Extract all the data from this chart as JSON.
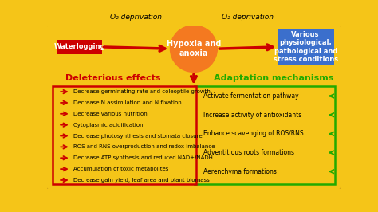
{
  "bg_color": "#f5c518",
  "waterlogging_label": "Waterlogging",
  "waterlogging_bg": "#cc0000",
  "hypoxia_label": "Hypoxia and\nanoxia",
  "hypoxia_color": "#f47920",
  "various_label": "Various\nphysiological,\npathological and\nstress conditions",
  "various_bg": "#3b6fcc",
  "o2_dep_label": "O₂ deprivation",
  "deleterious_label": "Deleterious effects",
  "deleterious_color": "#cc0000",
  "adaptation_label": "Adaptation mechanisms",
  "adaptation_color": "#22aa00",
  "deleterious_items": [
    "Decrease germinating rate and coleoptile growth",
    "Decrease N assimilation and N fixation",
    "Decrease various nutrition",
    "Cytoplasmic acidification",
    "Decrease photosynthesis and stomata closure",
    "ROS and RNS overproduction and redox imbalance",
    "Decrease ATP synthesis and reduced NAD+/NADH",
    "Accumulation of toxic metabolites",
    "Decrease gain yield, leaf area and plant biomass"
  ],
  "adaptation_items": [
    "Activate fermentation pathway",
    "Increase activity of antioxidants",
    "Enhance scavenging of ROS/RNS",
    "Adventitious roots formations",
    "Aerenchyma formations"
  ],
  "arrow_color_red": "#cc0000",
  "arrow_color_green": "#22aa00",
  "outer_border_color": "#d4a017",
  "green_box_border": "#22aa00",
  "red_box_border": "#cc0000"
}
